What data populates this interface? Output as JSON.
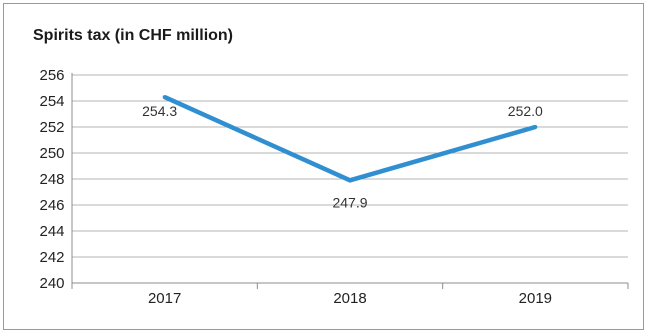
{
  "chart_data": {
    "type": "line",
    "title": "Spirits tax (in CHF million)",
    "categories": [
      "2017",
      "2018",
      "2019"
    ],
    "series": [
      {
        "values": [
          254.3,
          247.9,
          252.0
        ],
        "labels": [
          "254.3",
          "247.9",
          "252.0"
        ]
      }
    ],
    "ylim": [
      240,
      256
    ],
    "yticks": [
      "240",
      "242",
      "244",
      "246",
      "248",
      "250",
      "252",
      "254",
      "256"
    ],
    "grid": true,
    "line_color": "#2f8fd0",
    "grid_color": "#b5b5b5"
  }
}
